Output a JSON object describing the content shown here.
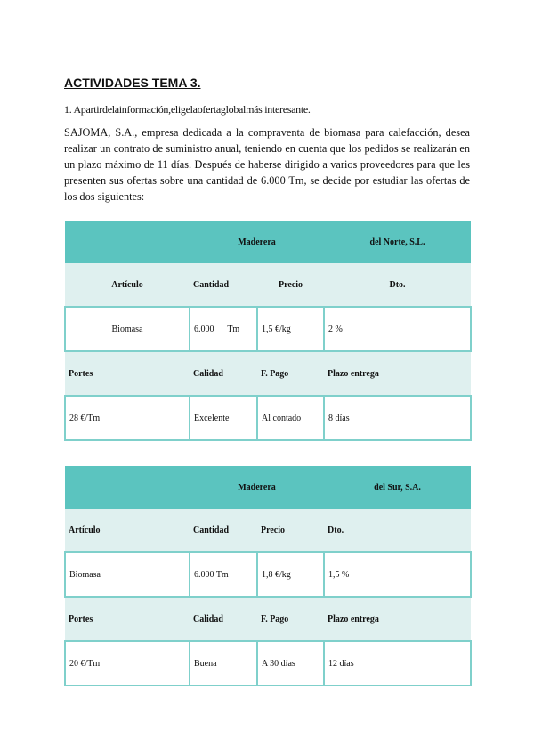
{
  "title": "ACTIVIDADES TEMA 3.",
  "question": "1. Apartirdelainformación,eligelaofertaglobalmás interesante.",
  "paragraph": "SAJOMA, S.A., empresa dedicada a la compraventa de biomasa para calefacción, desea realizar un contrato de suministro anual, teniendo en cuenta que los pedidos se realizarán en un plazo máximo de 11 días. Después de haberse dirigido a varios proveedores para que les presenten sus ofertas sobre una cantidad de 6.000 Tm, se decide por estudiar las ofertas de los dos siguientes:",
  "colors": {
    "header": "#5bc4bf",
    "subheader": "#dff0ef",
    "border": "#7fd0cb"
  },
  "offers": [
    {
      "name_a": "Maderera",
      "name_b": "del Norte, S.L.",
      "headers1": [
        "Artículo",
        "Cantidad",
        "Precio",
        "Dto."
      ],
      "values1": [
        "Biomasa",
        "6.000      Tm",
        "1,5 €/kg",
        "2 %"
      ],
      "headers2": [
        "Portes",
        "Calidad",
        "F. Pago",
        "Plazo entrega"
      ],
      "values2": [
        "28 €/Tm",
        "Excelente",
        "Al contado",
        "8 días"
      ]
    },
    {
      "name_a": "Maderera",
      "name_b": "del Sur, S.A.",
      "headers1": [
        "Artículo",
        "Cantidad",
        "Precio",
        "Dto."
      ],
      "values1": [
        "Biomasa",
        "6.000 Tm",
        "1,8 €/kg",
        "1,5 %"
      ],
      "headers2": [
        "Portes",
        "Calidad",
        "F. Pago",
        "Plazo entrega"
      ],
      "values2": [
        "20 €/Tm",
        "Buena",
        "A 30 días",
        "12 días"
      ]
    }
  ]
}
